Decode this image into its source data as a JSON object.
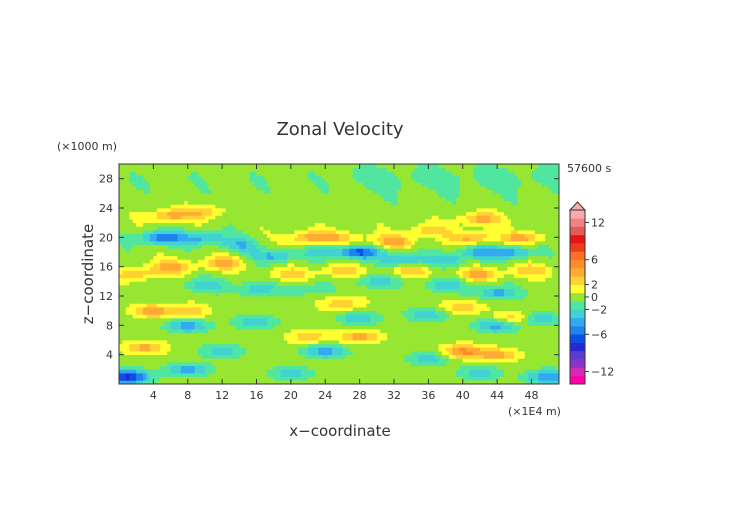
{
  "chart_data": {
    "type": "heatmap",
    "title": "Zonal Velocity",
    "xlabel": "x−coordinate",
    "ylabel": "z−coordinate",
    "x_unit_label": "(×1E4 m)",
    "y_unit_label": "(×1000 m)",
    "time_label": "57600 s",
    "xlim": [
      0,
      51.2
    ],
    "ylim": [
      0,
      30
    ],
    "x_ticks": [
      4,
      8,
      12,
      16,
      20,
      24,
      28,
      32,
      36,
      40,
      44,
      48
    ],
    "y_ticks": [
      4,
      8,
      12,
      16,
      20,
      24,
      28
    ],
    "colorbar": {
      "range": [
        -14,
        14
      ],
      "ticks": [
        12,
        6,
        2,
        0,
        -2,
        -6,
        -12
      ],
      "extend": "max",
      "colors": [
        "#ff00a8",
        "#d22ab4",
        "#8c32c8",
        "#5a3cd2",
        "#2828d2",
        "#0a50e6",
        "#1e82f0",
        "#32aaf0",
        "#41d2d2",
        "#50e6a0",
        "#96e632",
        "#ffff32",
        "#ffd232",
        "#ffaa32",
        "#ff8c28",
        "#ff6e28",
        "#f03c1e",
        "#e61414",
        "#e65a5a",
        "#f08282",
        "#faaaaa"
      ]
    },
    "features": [
      {
        "x": 6,
        "z": 23,
        "u": 4
      },
      {
        "x": 10,
        "z": 23.5,
        "u": 3
      },
      {
        "x": 42,
        "z": 22.5,
        "u": 4
      },
      {
        "x": 5,
        "z": 20,
        "u": -6
      },
      {
        "x": 10,
        "z": 20,
        "u": -4
      },
      {
        "x": 14,
        "z": 19,
        "u": -3
      },
      {
        "x": 22,
        "z": 20,
        "u": 4
      },
      {
        "x": 26,
        "z": 20,
        "u": 3
      },
      {
        "x": 32,
        "z": 19.5,
        "u": 4
      },
      {
        "x": 36,
        "z": 21,
        "u": 3
      },
      {
        "x": 41,
        "z": 20,
        "u": 4
      },
      {
        "x": 47,
        "z": 20,
        "u": 4
      },
      {
        "x": 18,
        "z": 17.5,
        "u": -4
      },
      {
        "x": 24,
        "z": 18,
        "u": -3
      },
      {
        "x": 28,
        "z": 18,
        "u": -6
      },
      {
        "x": 33,
        "z": 17,
        "u": -4
      },
      {
        "x": 38,
        "z": 17,
        "u": -3
      },
      {
        "x": 42,
        "z": 18,
        "u": -4
      },
      {
        "x": 46,
        "z": 18,
        "u": -4
      },
      {
        "x": 6,
        "z": 16,
        "u": 4
      },
      {
        "x": 12,
        "z": 16.5,
        "u": 4
      },
      {
        "x": 20,
        "z": 15,
        "u": 3
      },
      {
        "x": 26,
        "z": 15.5,
        "u": 3
      },
      {
        "x": 34,
        "z": 15.5,
        "u": 3
      },
      {
        "x": 42,
        "z": 15,
        "u": 4
      },
      {
        "x": 48,
        "z": 15.5,
        "u": 3
      },
      {
        "x": 2,
        "z": 15,
        "u": 3
      },
      {
        "x": 10,
        "z": 13.5,
        "u": -3
      },
      {
        "x": 16,
        "z": 13,
        "u": -3
      },
      {
        "x": 22,
        "z": 13,
        "u": -2
      },
      {
        "x": 30,
        "z": 14,
        "u": -3
      },
      {
        "x": 38,
        "z": 13.5,
        "u": -3
      },
      {
        "x": 44,
        "z": 12.5,
        "u": -4
      },
      {
        "x": 4,
        "z": 10,
        "u": 4
      },
      {
        "x": 8,
        "z": 10,
        "u": 3
      },
      {
        "x": 26,
        "z": 11,
        "u": 3
      },
      {
        "x": 40,
        "z": 10.5,
        "u": 3
      },
      {
        "x": 46,
        "z": 9,
        "u": 3
      },
      {
        "x": 8,
        "z": 8,
        "u": -4
      },
      {
        "x": 16,
        "z": 8.5,
        "u": -3
      },
      {
        "x": 28,
        "z": 9,
        "u": -3
      },
      {
        "x": 36,
        "z": 9.5,
        "u": -3
      },
      {
        "x": 44,
        "z": 8,
        "u": -4
      },
      {
        "x": 49,
        "z": 9,
        "u": -3
      },
      {
        "x": 22,
        "z": 6.5,
        "u": 3
      },
      {
        "x": 28,
        "z": 6.5,
        "u": 4
      },
      {
        "x": 3,
        "z": 5,
        "u": 4
      },
      {
        "x": 40,
        "z": 4.5,
        "u": 5
      },
      {
        "x": 44,
        "z": 4,
        "u": 4
      },
      {
        "x": 12,
        "z": 4.5,
        "u": -3
      },
      {
        "x": 24,
        "z": 4.5,
        "u": -4
      },
      {
        "x": 36,
        "z": 3.5,
        "u": -3
      },
      {
        "x": 8,
        "z": 2,
        "u": -4
      },
      {
        "x": 20,
        "z": 1.5,
        "u": -3
      },
      {
        "x": 42,
        "z": 1.5,
        "u": -3
      },
      {
        "x": 1,
        "z": 1,
        "u": -8
      },
      {
        "x": 50,
        "z": 1,
        "u": -5
      }
    ]
  }
}
